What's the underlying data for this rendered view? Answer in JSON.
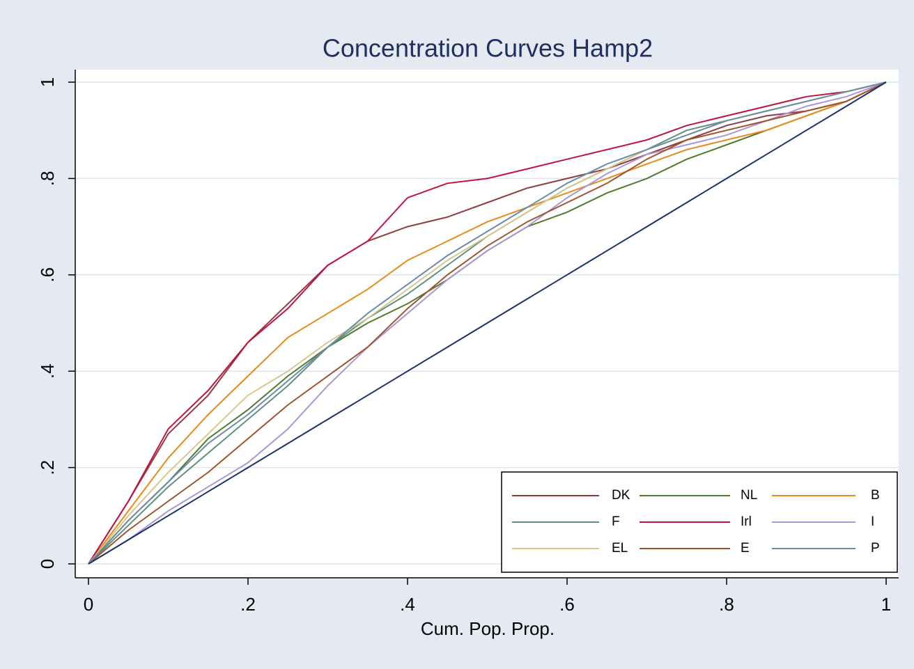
{
  "chart_data": {
    "type": "line",
    "title": "Concentration Curves Hamp2",
    "x_label": "Cum. Pop. Prop.",
    "x": [
      0,
      0.05,
      0.1,
      0.15,
      0.2,
      0.25,
      0.3,
      0.35,
      0.4,
      0.45,
      0.5,
      0.55,
      0.6,
      0.65,
      0.7,
      0.75,
      0.8,
      0.85,
      0.9,
      0.95,
      1
    ],
    "series": [
      {
        "name": "DK",
        "color": "#913a3f",
        "values": [
          0,
          0.13,
          0.27,
          0.35,
          0.46,
          0.54,
          0.62,
          0.67,
          0.7,
          0.72,
          0.75,
          0.78,
          0.8,
          0.82,
          0.85,
          0.88,
          0.91,
          0.93,
          0.94,
          0.96,
          1
        ]
      },
      {
        "name": "NL",
        "color": "#4d7a2c",
        "values": [
          0,
          0.09,
          0.17,
          0.26,
          0.32,
          0.39,
          0.45,
          0.5,
          0.54,
          0.59,
          0.65,
          0.7,
          0.73,
          0.77,
          0.8,
          0.84,
          0.87,
          0.9,
          0.93,
          0.96,
          1
        ]
      },
      {
        "name": "B",
        "color": "#e8891a",
        "values": [
          0,
          0.11,
          0.22,
          0.31,
          0.39,
          0.47,
          0.52,
          0.57,
          0.63,
          0.67,
          0.71,
          0.74,
          0.77,
          0.8,
          0.83,
          0.86,
          0.88,
          0.9,
          0.93,
          0.96,
          1
        ]
      },
      {
        "name": "F",
        "color": "#5f9080",
        "values": [
          0,
          0.08,
          0.16,
          0.23,
          0.3,
          0.37,
          0.45,
          0.51,
          0.56,
          0.62,
          0.68,
          0.73,
          0.78,
          0.82,
          0.86,
          0.9,
          0.92,
          0.94,
          0.96,
          0.98,
          1
        ]
      },
      {
        "name": "Irl",
        "color": "#c0123c",
        "values": [
          0,
          0.13,
          0.28,
          0.36,
          0.46,
          0.53,
          0.62,
          0.67,
          0.76,
          0.79,
          0.8,
          0.82,
          0.84,
          0.86,
          0.88,
          0.91,
          0.93,
          0.95,
          0.97,
          0.98,
          1
        ]
      },
      {
        "name": "I",
        "color": "#a896d8",
        "values": [
          0,
          0.05,
          0.11,
          0.16,
          0.21,
          0.28,
          0.37,
          0.45,
          0.52,
          0.59,
          0.65,
          0.7,
          0.76,
          0.81,
          0.85,
          0.87,
          0.89,
          0.92,
          0.95,
          0.97,
          1
        ]
      },
      {
        "name": "EL",
        "color": "#d8c68a",
        "values": [
          0,
          0.1,
          0.19,
          0.27,
          0.35,
          0.4,
          0.46,
          0.51,
          0.57,
          0.63,
          0.68,
          0.73,
          0.78,
          0.82,
          0.86,
          0.89,
          0.92,
          0.94,
          0.96,
          0.98,
          1
        ]
      },
      {
        "name": "E",
        "color": "#a0522d",
        "values": [
          0,
          0.07,
          0.13,
          0.19,
          0.26,
          0.33,
          0.39,
          0.45,
          0.53,
          0.6,
          0.66,
          0.71,
          0.75,
          0.79,
          0.84,
          0.88,
          0.9,
          0.92,
          0.94,
          0.96,
          1
        ]
      },
      {
        "name": "P",
        "color": "#6b8ca8",
        "values": [
          0,
          0.09,
          0.17,
          0.25,
          0.31,
          0.38,
          0.45,
          0.52,
          0.58,
          0.64,
          0.69,
          0.74,
          0.79,
          0.83,
          0.86,
          0.89,
          0.92,
          0.94,
          0.96,
          0.98,
          1
        ]
      },
      {
        "color": "#1a2f6b",
        "values": [
          0,
          0.05,
          0.1,
          0.15,
          0.2,
          0.25,
          0.3,
          0.35,
          0.4,
          0.45,
          0.5,
          0.55,
          0.6,
          0.65,
          0.7,
          0.75,
          0.8,
          0.85,
          0.9,
          0.95,
          1
        ]
      }
    ],
    "xlim": [
      0,
      1
    ],
    "ylim": [
      0,
      1
    ],
    "xticks": [
      0,
      {
        "value": 0.2,
        "label": ".2"
      },
      {
        "value": 0.4,
        "label": ".4"
      },
      {
        "value": 0.6,
        "label": ".6"
      },
      {
        "value": 0.8,
        "label": ".8"
      },
      1
    ],
    "yticks": [
      0,
      {
        "value": 0.2,
        "label": ".2"
      },
      {
        "value": 0.4,
        "label": ".4"
      },
      {
        "value": 0.6,
        "label": ".6"
      },
      {
        "value": 0.8,
        "label": ".8"
      },
      1
    ],
    "grid": true,
    "legend": "bottom-right"
  }
}
